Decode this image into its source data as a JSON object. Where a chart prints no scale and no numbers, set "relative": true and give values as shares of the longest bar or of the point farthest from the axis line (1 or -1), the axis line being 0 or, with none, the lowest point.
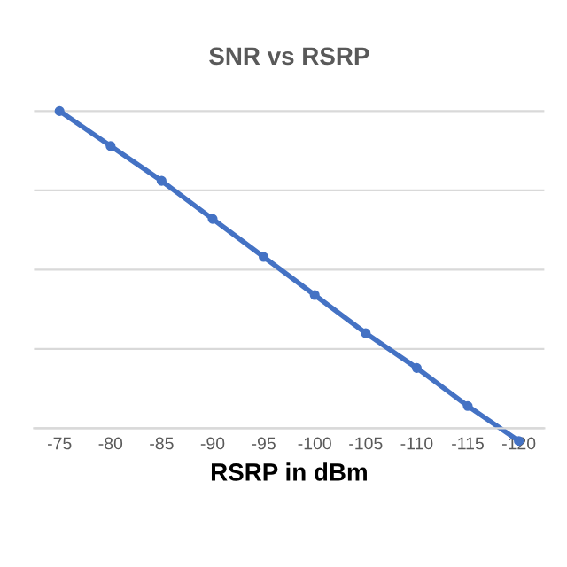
{
  "chart_data": {
    "type": "line",
    "title": "SNR vs RSRP",
    "xlabel": "RSRP in dBm",
    "categories": [
      "-75",
      "-80",
      "-85",
      "-90",
      "-95",
      "-100",
      "-105",
      "-110",
      "-115",
      "-120"
    ],
    "relative": true,
    "series": [
      {
        "color": "#4472c4",
        "values": [
          1,
          0.89,
          0.78,
          0.66,
          0.54,
          0.42,
          0.3,
          0.19,
          0.07,
          -0.04
        ]
      }
    ],
    "marker": "circle",
    "grid": "y",
    "legend": false
  }
}
